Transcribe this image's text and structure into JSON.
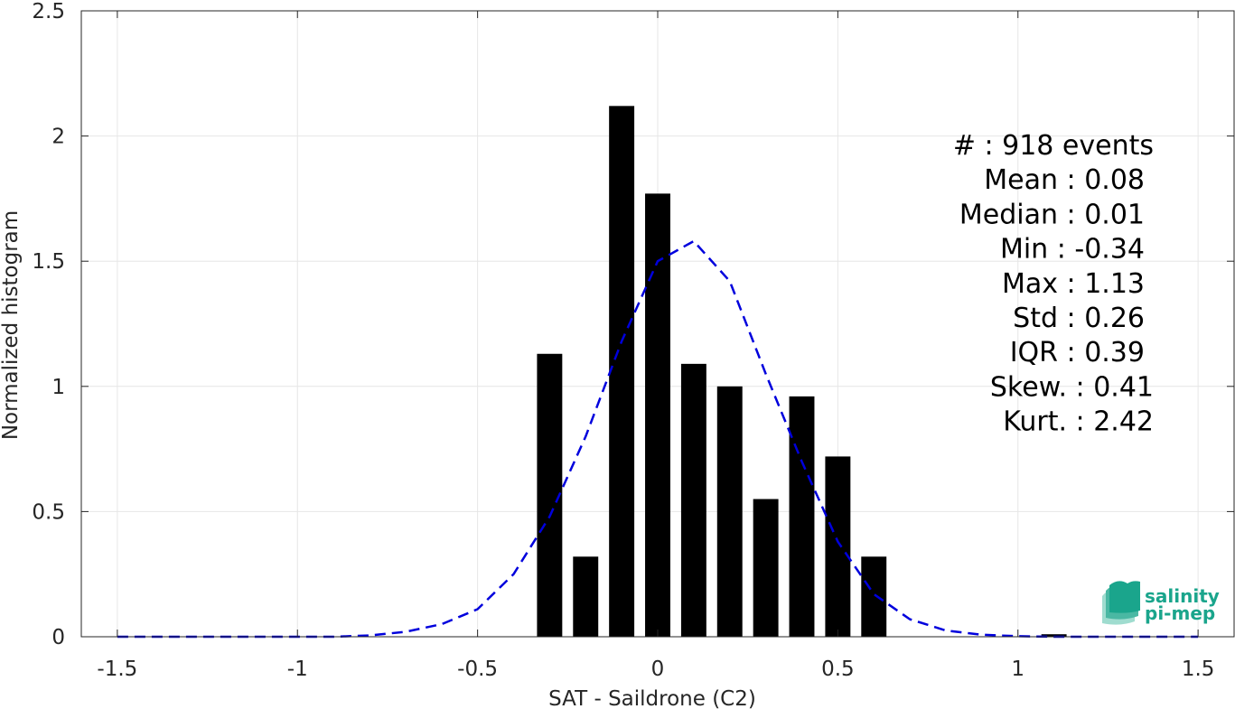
{
  "chart_data": {
    "type": "bar",
    "xlabel": "SAT - Saildrone (C2)",
    "ylabel": "Normalized histogram",
    "xlim": [
      -1.6,
      1.6
    ],
    "ylim": [
      0,
      2.5
    ],
    "grid": true,
    "x_ticks": [
      -1.5,
      -1,
      -0.5,
      0,
      0.5,
      1,
      1.5
    ],
    "x_tick_labels": [
      "-1.5",
      "-1",
      "-0.5",
      "0",
      "0.5",
      "1",
      "1.5"
    ],
    "y_ticks": [
      0,
      0.5,
      1,
      1.5,
      2,
      2.5
    ],
    "y_tick_labels": [
      "0",
      "0.5",
      "1",
      "1.5",
      "2",
      "2.5"
    ],
    "bar_width": 0.07,
    "bars": {
      "x": [
        -0.3,
        -0.2,
        -0.1,
        0.0,
        0.1,
        0.2,
        0.3,
        0.4,
        0.5,
        0.6,
        1.1
      ],
      "values": [
        1.13,
        0.32,
        2.12,
        1.77,
        1.09,
        1.0,
        0.55,
        0.96,
        0.72,
        0.32,
        0.01
      ]
    },
    "fit_curve": {
      "style": "dashed",
      "x": [
        -1.5,
        -1.4,
        -1.3,
        -1.2,
        -1.1,
        -1.0,
        -0.9,
        -0.8,
        -0.7,
        -0.6,
        -0.5,
        -0.4,
        -0.3,
        -0.2,
        -0.1,
        0.0,
        0.1,
        0.2,
        0.3,
        0.4,
        0.5,
        0.6,
        0.7,
        0.8,
        0.9,
        1.0,
        1.1,
        1.2,
        1.3,
        1.4,
        1.5
      ],
      "y": [
        0.0,
        0.0,
        0.0,
        0.0,
        0.0,
        0.0,
        0.0,
        0.005,
        0.02,
        0.05,
        0.11,
        0.25,
        0.48,
        0.8,
        1.18,
        1.5,
        1.58,
        1.42,
        1.05,
        0.7,
        0.38,
        0.17,
        0.07,
        0.025,
        0.008,
        0.002,
        0.0,
        0.0,
        0.0,
        0.0,
        0.0
      ]
    },
    "stats": [
      "#  : 918 events",
      "Mean : 0.08",
      "Median : 0.01",
      "Min : -0.34",
      "Max : 1.13",
      "Std : 0.26",
      "IQR : 0.39",
      "Skew. : 0.41",
      "Kurt. : 2.42"
    ]
  },
  "logo": {
    "line1": "salinity",
    "line2": "pi-mep"
  },
  "colors": {
    "bars": "#000000",
    "fit_curve": "#0000dd",
    "grid": "#e6e6e6",
    "axis": "#262626",
    "logo": "#1aa58c"
  }
}
